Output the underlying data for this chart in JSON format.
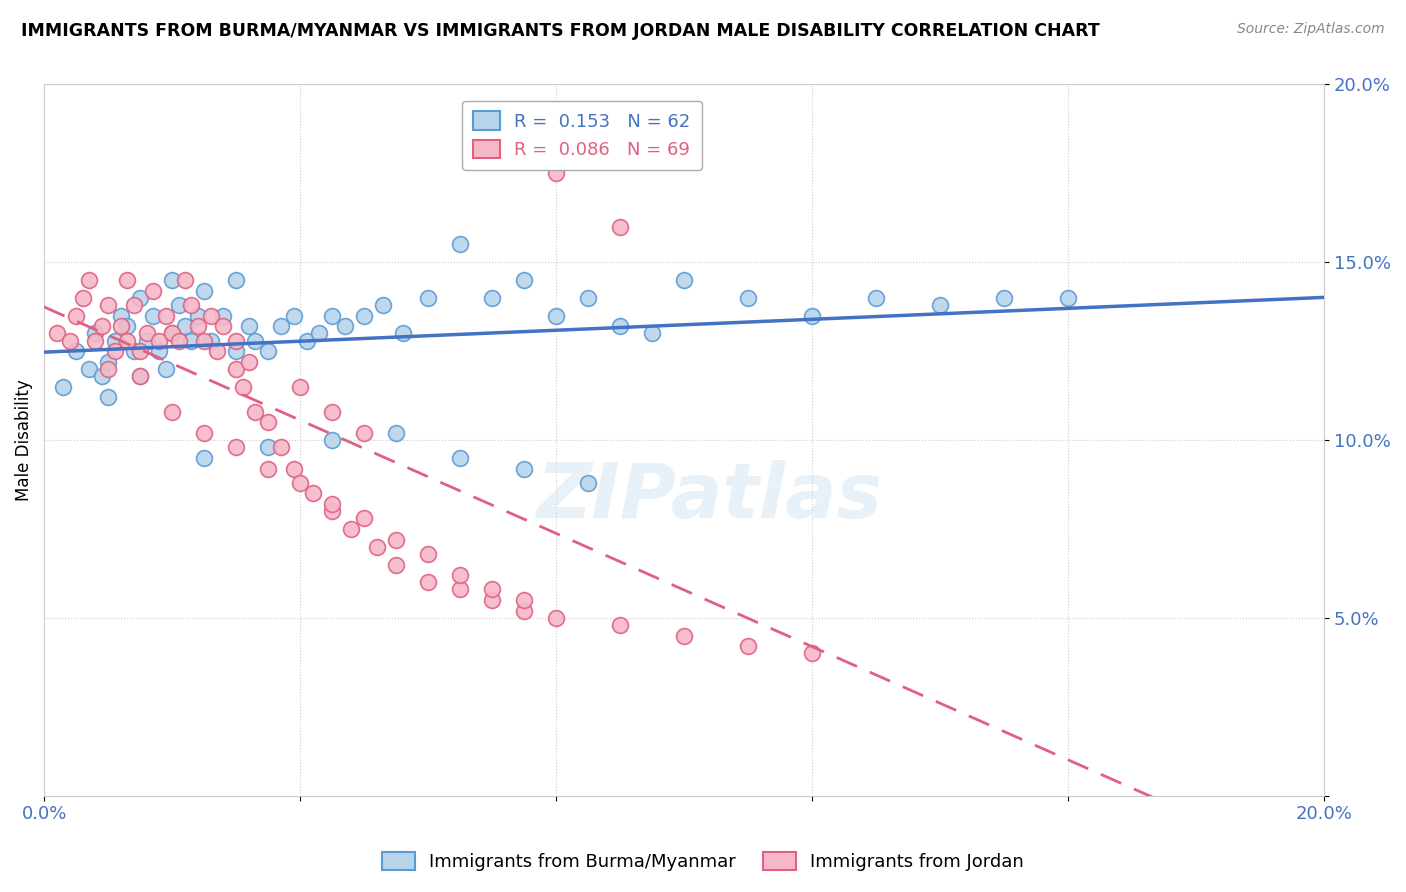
{
  "title": "IMMIGRANTS FROM BURMA/MYANMAR VS IMMIGRANTS FROM JORDAN MALE DISABILITY CORRELATION CHART",
  "source": "Source: ZipAtlas.com",
  "xlabel": "Immigrants from Burma/Myanmar",
  "ylabel": "Male Disability",
  "xlim": [
    0.0,
    0.2
  ],
  "ylim": [
    0.0,
    0.2
  ],
  "blue_R": 0.153,
  "blue_N": 62,
  "pink_R": 0.086,
  "pink_N": 69,
  "blue_color": "#b8d4ea",
  "blue_edge": "#5b9bd5",
  "pink_color": "#f4b8c8",
  "pink_edge": "#e06080",
  "blue_line_color": "#4472c4",
  "pink_line_color": "#e06080",
  "watermark": "ZIPatlas",
  "blue_x": [
    0.003,
    0.005,
    0.007,
    0.008,
    0.009,
    0.01,
    0.01,
    0.011,
    0.012,
    0.013,
    0.014,
    0.015,
    0.015,
    0.016,
    0.017,
    0.018,
    0.019,
    0.02,
    0.02,
    0.021,
    0.022,
    0.023,
    0.024,
    0.025,
    0.026,
    0.028,
    0.03,
    0.03,
    0.032,
    0.033,
    0.035,
    0.037,
    0.039,
    0.041,
    0.043,
    0.045,
    0.047,
    0.05,
    0.053,
    0.056,
    0.06,
    0.065,
    0.07,
    0.075,
    0.08,
    0.085,
    0.09,
    0.095,
    0.1,
    0.11,
    0.12,
    0.13,
    0.14,
    0.15,
    0.16,
    0.085,
    0.075,
    0.065,
    0.055,
    0.045,
    0.035,
    0.025
  ],
  "blue_y": [
    0.115,
    0.125,
    0.12,
    0.13,
    0.118,
    0.112,
    0.122,
    0.128,
    0.135,
    0.132,
    0.125,
    0.14,
    0.118,
    0.128,
    0.135,
    0.125,
    0.12,
    0.13,
    0.145,
    0.138,
    0.132,
    0.128,
    0.135,
    0.142,
    0.128,
    0.135,
    0.125,
    0.145,
    0.132,
    0.128,
    0.125,
    0.132,
    0.135,
    0.128,
    0.13,
    0.135,
    0.132,
    0.135,
    0.138,
    0.13,
    0.14,
    0.155,
    0.14,
    0.145,
    0.135,
    0.14,
    0.132,
    0.13,
    0.145,
    0.14,
    0.135,
    0.14,
    0.138,
    0.14,
    0.14,
    0.088,
    0.092,
    0.095,
    0.102,
    0.1,
    0.098,
    0.095
  ],
  "pink_x": [
    0.002,
    0.004,
    0.005,
    0.006,
    0.007,
    0.008,
    0.009,
    0.01,
    0.01,
    0.011,
    0.012,
    0.013,
    0.013,
    0.014,
    0.015,
    0.015,
    0.016,
    0.017,
    0.018,
    0.019,
    0.02,
    0.021,
    0.022,
    0.023,
    0.024,
    0.025,
    0.026,
    0.027,
    0.028,
    0.03,
    0.03,
    0.031,
    0.032,
    0.033,
    0.035,
    0.037,
    0.039,
    0.042,
    0.045,
    0.048,
    0.052,
    0.055,
    0.06,
    0.065,
    0.07,
    0.075,
    0.08,
    0.09,
    0.1,
    0.11,
    0.12,
    0.02,
    0.025,
    0.03,
    0.035,
    0.04,
    0.045,
    0.05,
    0.055,
    0.06,
    0.065,
    0.07,
    0.075,
    0.08,
    0.085,
    0.09,
    0.04,
    0.045,
    0.05
  ],
  "pink_y": [
    0.13,
    0.128,
    0.135,
    0.14,
    0.145,
    0.128,
    0.132,
    0.12,
    0.138,
    0.125,
    0.132,
    0.128,
    0.145,
    0.138,
    0.125,
    0.118,
    0.13,
    0.142,
    0.128,
    0.135,
    0.13,
    0.128,
    0.145,
    0.138,
    0.132,
    0.128,
    0.135,
    0.125,
    0.132,
    0.12,
    0.128,
    0.115,
    0.122,
    0.108,
    0.105,
    0.098,
    0.092,
    0.085,
    0.08,
    0.075,
    0.07,
    0.065,
    0.06,
    0.058,
    0.055,
    0.052,
    0.05,
    0.048,
    0.045,
    0.042,
    0.04,
    0.108,
    0.102,
    0.098,
    0.092,
    0.088,
    0.082,
    0.078,
    0.072,
    0.068,
    0.062,
    0.058,
    0.055,
    0.175,
    0.18,
    0.16,
    0.115,
    0.108,
    0.102
  ]
}
